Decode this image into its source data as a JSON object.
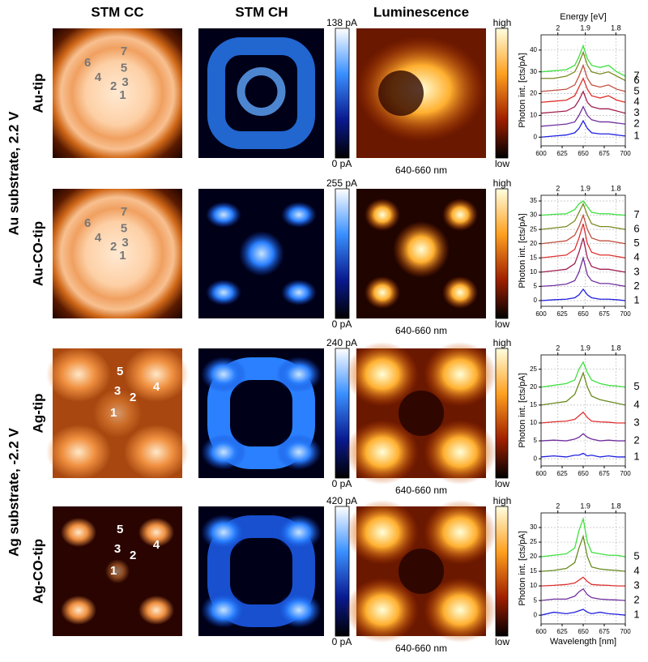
{
  "column_headers": [
    "STM CC",
    "STM CH",
    "Luminescence"
  ],
  "groups": [
    {
      "label": "Au substrate, 2.2 V"
    },
    {
      "label": "Ag substrate, -2.2 V"
    }
  ],
  "rows": [
    {
      "label": "Au-tip",
      "points": [
        "1",
        "2",
        "3",
        "4",
        "5",
        "6",
        "7"
      ],
      "ch_max": "138 pA",
      "ch_min": "0 pA",
      "lum_max": "high",
      "lum_min": "low",
      "lum_caption": "640-660 nm"
    },
    {
      "label": "Au-CO-tip",
      "points": [
        "1",
        "2",
        "3",
        "4",
        "5",
        "6",
        "7"
      ],
      "ch_max": "255 pA",
      "ch_min": "0 pA",
      "lum_max": "high",
      "lum_min": "low",
      "lum_caption": "640-660 nm"
    },
    {
      "label": "Ag-tip",
      "points": [
        "1",
        "2",
        "3",
        "4",
        "5"
      ],
      "ch_max": "240 pA",
      "ch_min": "0 pA",
      "lum_max": "high",
      "lum_min": "low",
      "lum_caption": "640-660 nm"
    },
    {
      "label": "Ag-CO-tip",
      "points": [
        "1",
        "2",
        "3",
        "4",
        "5"
      ],
      "ch_max": "420 pA",
      "ch_min": "0 pA",
      "lum_max": "high",
      "lum_min": "low",
      "lum_caption": "640-660 nm"
    }
  ],
  "chart_data": [
    {
      "type": "line",
      "x2label": "Energy [eV]",
      "ylabel": "Photon int. [cts/pA]",
      "grid": true,
      "x": [
        600,
        615,
        630,
        640,
        645,
        650,
        655,
        660,
        670,
        680,
        690,
        700
      ],
      "xlim": [
        600,
        700
      ],
      "xticks": [
        600,
        625,
        650,
        675,
        700
      ],
      "x2ticks": [
        2,
        1.9,
        1.8
      ],
      "ylim": [
        -4,
        47
      ],
      "yticks": [
        0,
        10,
        20,
        30,
        40
      ],
      "series": [
        {
          "name": "1",
          "color": "#2020e0",
          "values": [
            0,
            0.5,
            1,
            2,
            4,
            7.5,
            4,
            2,
            1.5,
            1.5,
            1,
            0.5
          ]
        },
        {
          "name": "2",
          "color": "#7030a0",
          "values": [
            5,
            5.5,
            6,
            7,
            10,
            14,
            10,
            8,
            7,
            7,
            6.5,
            6
          ]
        },
        {
          "name": "3",
          "color": "#a02050",
          "values": [
            11,
            11.5,
            12,
            14,
            17,
            21,
            16,
            14,
            13,
            13,
            12,
            11
          ]
        },
        {
          "name": "4",
          "color": "#e03030",
          "values": [
            16,
            16.5,
            17,
            19,
            23,
            27,
            22,
            19,
            18,
            19,
            17,
            16
          ]
        },
        {
          "name": "5",
          "color": "#c05040",
          "values": [
            21,
            21.5,
            22,
            24,
            28,
            33,
            27,
            24,
            23,
            24,
            22,
            21
          ]
        },
        {
          "name": "6",
          "color": "#7a8a20",
          "values": [
            27,
            27,
            28,
            30,
            34,
            39,
            33,
            30,
            29,
            30,
            28,
            26
          ]
        },
        {
          "name": "7",
          "color": "#40e040",
          "values": [
            30,
            30.5,
            31,
            33,
            37,
            42,
            36,
            33,
            32,
            33,
            30,
            28
          ]
        }
      ]
    },
    {
      "type": "line",
      "ylabel": "Photon int. [cts/pA]",
      "grid": true,
      "x": [
        600,
        615,
        630,
        640,
        645,
        650,
        655,
        660,
        670,
        680,
        690,
        700
      ],
      "xlim": [
        600,
        700
      ],
      "xticks": [
        600,
        625,
        650,
        675,
        700
      ],
      "x2ticks": [
        2,
        1.9,
        1.8
      ],
      "ylim": [
        -2,
        37
      ],
      "yticks": [
        0,
        5,
        10,
        15,
        20,
        25,
        30,
        35
      ],
      "series": [
        {
          "name": "1",
          "color": "#2020e0",
          "values": [
            0,
            0.3,
            0.5,
            1,
            2,
            4,
            2,
            1,
            0.5,
            0.5,
            0.3,
            0
          ]
        },
        {
          "name": "2",
          "color": "#7030a0",
          "values": [
            5,
            5.3,
            5.8,
            7,
            10,
            15,
            9,
            7,
            6,
            6,
            5.5,
            5
          ]
        },
        {
          "name": "3",
          "color": "#a02050",
          "values": [
            10,
            10.5,
            11,
            13,
            17,
            22,
            15,
            12,
            11,
            11,
            10.5,
            10
          ]
        },
        {
          "name": "4",
          "color": "#e03030",
          "values": [
            15,
            15.5,
            16,
            18,
            22,
            27,
            20,
            17,
            16,
            16,
            15.5,
            15
          ]
        },
        {
          "name": "5",
          "color": "#c05040",
          "values": [
            20,
            20.5,
            21,
            23,
            26,
            30,
            25,
            22,
            21,
            21,
            20.5,
            20
          ]
        },
        {
          "name": "6",
          "color": "#7a8a20",
          "values": [
            25,
            25.5,
            26,
            28,
            31,
            34,
            30,
            27,
            26,
            26,
            25.5,
            25
          ]
        },
        {
          "name": "7",
          "color": "#40e040",
          "values": [
            30,
            30.3,
            30.5,
            32,
            34,
            35,
            33,
            31,
            30.5,
            30.5,
            30.2,
            30
          ]
        }
      ]
    },
    {
      "type": "line",
      "ylabel": "Photon int. [cts/pA]",
      "grid": true,
      "x": [
        600,
        615,
        630,
        640,
        645,
        650,
        655,
        660,
        670,
        680,
        690,
        700
      ],
      "xlim": [
        600,
        700
      ],
      "xticks": [
        600,
        625,
        650,
        675,
        700
      ],
      "x2ticks": [
        2,
        1.9,
        1.8
      ],
      "ylim": [
        -2,
        29
      ],
      "yticks": [
        0,
        5,
        10,
        15,
        20,
        25
      ],
      "series": [
        {
          "name": "1",
          "color": "#2020e0",
          "values": [
            0.5,
            0.8,
            0.5,
            1,
            1,
            1.5,
            0.8,
            1,
            0.5,
            0.8,
            0.5,
            0.5
          ]
        },
        {
          "name": "2",
          "color": "#7030a0",
          "values": [
            5,
            5.2,
            5,
            5.5,
            6,
            7,
            6,
            5.5,
            5,
            5.2,
            5,
            5
          ]
        },
        {
          "name": "3",
          "color": "#e03030",
          "values": [
            10,
            10.3,
            10.5,
            11,
            12,
            13,
            11.5,
            10.5,
            10.3,
            10.2,
            10,
            10
          ]
        },
        {
          "name": "4",
          "color": "#6a8a20",
          "values": [
            15,
            15.5,
            16,
            18,
            21,
            24,
            20,
            17.5,
            16.5,
            16,
            15.5,
            15
          ]
        },
        {
          "name": "5",
          "color": "#40e040",
          "values": [
            20,
            20.5,
            21,
            22,
            25,
            27,
            24,
            22,
            21,
            20.5,
            20.3,
            20
          ]
        }
      ]
    },
    {
      "type": "line",
      "xlabel": "Wavelength [nm]",
      "ylabel": "Photon int. [cts/pA]",
      "grid": true,
      "x": [
        600,
        615,
        630,
        640,
        645,
        650,
        655,
        660,
        670,
        680,
        690,
        700
      ],
      "xlim": [
        600,
        700
      ],
      "xticks": [
        600,
        625,
        650,
        675,
        700
      ],
      "x2ticks": [
        2,
        1.9,
        1.8
      ],
      "ylim": [
        -3,
        35
      ],
      "yticks": [
        0,
        5,
        10,
        15,
        20,
        25,
        30
      ],
      "series": [
        {
          "name": "1",
          "color": "#2020e0",
          "values": [
            0,
            1,
            0.5,
            1,
            1.5,
            2,
            1,
            0.5,
            1,
            0.5,
            0.3,
            0
          ]
        },
        {
          "name": "2",
          "color": "#7030a0",
          "values": [
            5,
            5.5,
            5.5,
            6.5,
            8,
            9,
            7,
            6,
            5.5,
            5.3,
            5.2,
            5
          ]
        },
        {
          "name": "3",
          "color": "#e03030",
          "values": [
            10,
            10.2,
            10.5,
            11,
            12,
            13,
            11.5,
            10.5,
            10.3,
            10.2,
            10,
            10
          ]
        },
        {
          "name": "4",
          "color": "#6a8a20",
          "values": [
            15,
            15.3,
            16,
            18,
            23,
            27,
            20,
            16.5,
            15.8,
            15.5,
            15.3,
            15
          ]
        },
        {
          "name": "5",
          "color": "#40e040",
          "values": [
            20,
            20.5,
            21,
            23,
            29,
            33,
            25,
            21.5,
            21,
            20.5,
            20.5,
            20
          ]
        }
      ]
    }
  ]
}
